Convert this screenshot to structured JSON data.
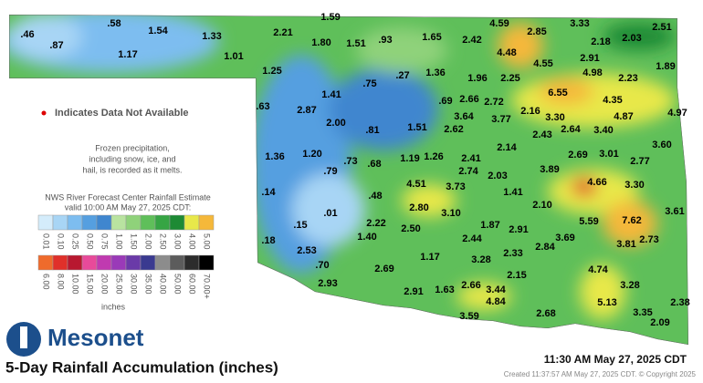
{
  "stations": [
    ".46",
    ".87",
    ".58",
    "1.54",
    "1.33",
    "1.17",
    "1.01",
    "1.59",
    "2.21",
    "1.80",
    "1.51",
    ".93",
    "1.65",
    "2.42",
    "4.59",
    "2.85",
    "3.33",
    "2.51",
    "2.18",
    "2.03",
    "4.48",
    "2.91",
    "4.55",
    "4.98",
    "2.23",
    "1.89",
    "1.25",
    "1.41",
    ".75",
    ".27",
    "1.36",
    "1.96",
    "2.25",
    "6.55",
    "4.35",
    ".63",
    "2.87",
    "2.00",
    ".69",
    "2.66",
    "2.72",
    "2.16",
    "3.30",
    "4.87",
    "4.97",
    ".81",
    "1.51",
    "3.64",
    "3.77",
    "2.62",
    "2.43",
    "2.64",
    "3.40",
    "1.36",
    "1.20",
    ".73",
    ".68",
    "1.19",
    "1.26",
    "2.41",
    "2.14",
    "2.69",
    "3.01",
    "3.60",
    "2.77",
    ".79",
    "2.74",
    "2.03",
    "3.89",
    ".14",
    "4.51",
    "3.73",
    "4.66",
    "3.30",
    "1.41",
    "2.10",
    ".48",
    "2.80",
    "3.10",
    ".01",
    "5.59",
    "7.62",
    "3.61",
    ".15",
    "2.22",
    "1.87",
    "2.91",
    "2.50",
    "1.40",
    "2.44",
    "3.69",
    "3.81",
    "2.73",
    ".18",
    "2.53",
    "2.33",
    "2.84",
    "1.17",
    "3.28",
    ".70",
    "2.69",
    "2.15",
    "4.74",
    "2.93",
    "2.91",
    "1.63",
    "2.66",
    "3.44",
    "3.28",
    "4.84",
    "5.13",
    "2.38",
    "3.59",
    "2.68",
    "3.35",
    "2.09"
  ],
  "legend": {
    "missing_note": "Indicates Data Not Available",
    "frozen_note": [
      "Frozen precipitation,",
      "including snow, ice, and",
      "hail, is recorded as it melts."
    ],
    "source_line1": "NWS River Forecast Center Rainfall Estimate",
    "source_line2": "valid 10:00 AM May 27, 2025 CDT:",
    "scale_row1": [
      {
        "label": "0.01",
        "color": "#d4ecfb"
      },
      {
        "label": "0.10",
        "color": "#a8d5f5"
      },
      {
        "label": "0.25",
        "color": "#7dbdf0"
      },
      {
        "label": "0.50",
        "color": "#559fe0"
      },
      {
        "label": "0.75",
        "color": "#3f86cf"
      },
      {
        "label": "1.00",
        "color": "#b9e3a0"
      },
      {
        "label": "1.50",
        "color": "#8fd27a"
      },
      {
        "label": "2.00",
        "color": "#5fbf5a"
      },
      {
        "label": "2.50",
        "color": "#36a544"
      },
      {
        "label": "3.00",
        "color": "#1d8a34"
      },
      {
        "label": "4.00",
        "color": "#e8e84a"
      },
      {
        "label": "5.00",
        "color": "#f5b83a"
      }
    ],
    "scale_row2": [
      {
        "label": "6.00",
        "color": "#ef6b2c"
      },
      {
        "label": "8.00",
        "color": "#e0302a"
      },
      {
        "label": "10.00",
        "color": "#b81830"
      },
      {
        "label": "15.00",
        "color": "#e84a9a"
      },
      {
        "label": "20.00",
        "color": "#c03ab0"
      },
      {
        "label": "25.00",
        "color": "#9a3ab8"
      },
      {
        "label": "30.00",
        "color": "#6a3aa8"
      },
      {
        "label": "35.00",
        "color": "#3a3a90"
      },
      {
        "label": "40.00",
        "color": "#8c8c8c"
      },
      {
        "label": "50.00",
        "color": "#5c5c5c"
      },
      {
        "label": "60.00",
        "color": "#2c2c2c"
      },
      {
        "label": "70.00+",
        "color": "#000000"
      }
    ],
    "unit": "inches"
  },
  "brand": "Mesonet",
  "title": "5-Day Rainfall Accumulation (inches)",
  "timestamp": "11:30 AM May 27, 2025 CDT",
  "created": "Created 11:37:57 AM May 27, 2025 CDT. © Copyright 2025"
}
